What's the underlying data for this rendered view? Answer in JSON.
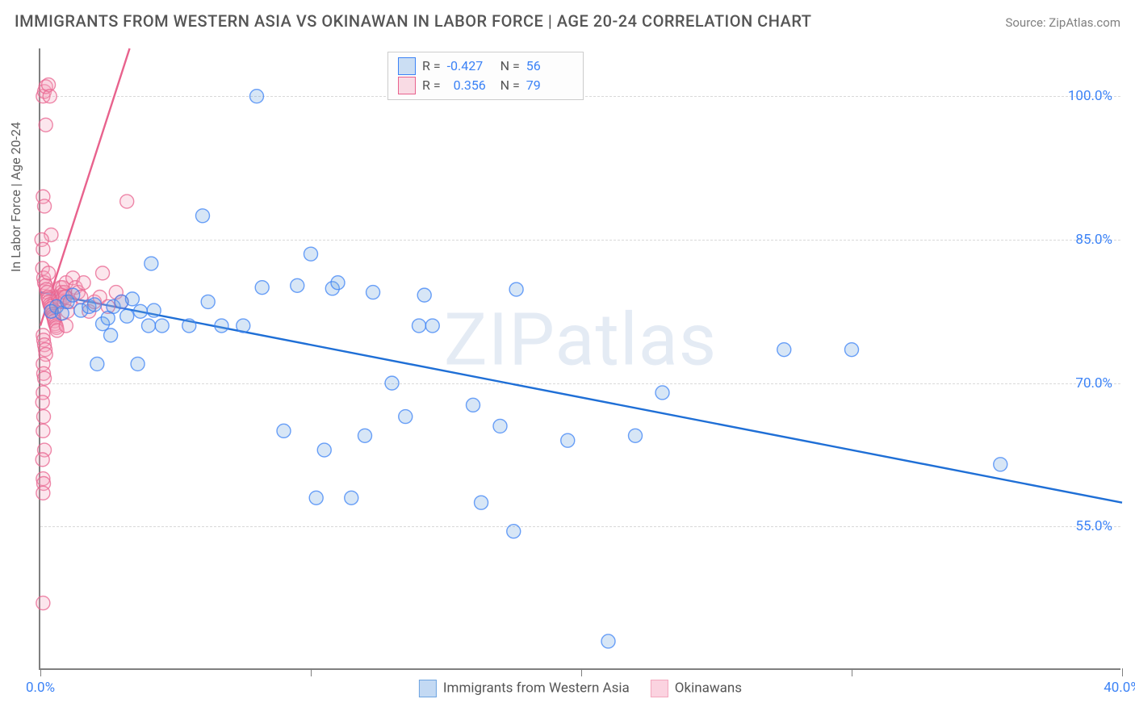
{
  "title": "IMMIGRANTS FROM WESTERN ASIA VS OKINAWAN IN LABOR FORCE | AGE 20-24 CORRELATION CHART",
  "source": "Source: ZipAtlas.com",
  "y_axis_title": "In Labor Force | Age 20-24",
  "watermark": "ZIPatlas",
  "chart": {
    "type": "scatter-correlation",
    "background_color": "#ffffff",
    "grid_color": "#d9d9d9",
    "axis_color": "#7f7f7f",
    "xlim": [
      0,
      40
    ],
    "ylim": [
      40,
      105
    ],
    "x_ticks": [
      0,
      10,
      20,
      30,
      40
    ],
    "x_tick_labels": [
      "0.0%",
      "",
      "",
      "",
      "40.0%"
    ],
    "y_ticks": [
      55,
      70,
      85,
      100
    ],
    "y_tick_labels": [
      "55.0%",
      "70.0%",
      "85.0%",
      "100.0%"
    ],
    "label_fontsize": 17,
    "label_color": "#3b82f6",
    "title_fontsize": 20,
    "title_color": "#555555",
    "marker_radius": 8.5,
    "marker_stroke_width": 1.4,
    "marker_fill_opacity": 0.28,
    "trend_line_width": 2.4,
    "series": [
      {
        "name": "Immigrants from Western Asia",
        "color": "#6ea4e0",
        "stroke": "#3b82f6",
        "line_color": "#1f6fd6",
        "R": "-0.427",
        "N": "56",
        "trend": {
          "x1": 0,
          "y1": 79.5,
          "x2": 40,
          "y2": 57.5
        },
        "points": [
          [
            0.4,
            77.5
          ],
          [
            0.6,
            78
          ],
          [
            0.8,
            77.3
          ],
          [
            1.0,
            78.5
          ],
          [
            1.2,
            79.2
          ],
          [
            1.5,
            77.6
          ],
          [
            1.8,
            78.0
          ],
          [
            2.0,
            78.2
          ],
          [
            2.1,
            72.0
          ],
          [
            2.3,
            76.2
          ],
          [
            2.5,
            76.8
          ],
          [
            2.6,
            75.0
          ],
          [
            2.7,
            78.0
          ],
          [
            3.0,
            78.5
          ],
          [
            3.2,
            77.0
          ],
          [
            3.4,
            78.8
          ],
          [
            3.6,
            72.0
          ],
          [
            3.7,
            77.5
          ],
          [
            4.0,
            76.0
          ],
          [
            4.1,
            82.5
          ],
          [
            4.2,
            77.6
          ],
          [
            4.5,
            76.0
          ],
          [
            5.5,
            76.0
          ],
          [
            6.0,
            87.5
          ],
          [
            6.2,
            78.5
          ],
          [
            6.7,
            76.0
          ],
          [
            7.5,
            76.0
          ],
          [
            8.0,
            100.0
          ],
          [
            8.2,
            80.0
          ],
          [
            9.0,
            65.0
          ],
          [
            9.5,
            80.2
          ],
          [
            10.0,
            83.5
          ],
          [
            10.2,
            58.0
          ],
          [
            10.5,
            63.0
          ],
          [
            10.8,
            79.9
          ],
          [
            11.0,
            80.5
          ],
          [
            11.5,
            58.0
          ],
          [
            12.0,
            64.5
          ],
          [
            12.3,
            79.5
          ],
          [
            13.0,
            70.0
          ],
          [
            13.5,
            66.5
          ],
          [
            14.0,
            76.0
          ],
          [
            14.2,
            79.2
          ],
          [
            14.5,
            76.0
          ],
          [
            16.0,
            67.7
          ],
          [
            16.3,
            57.5
          ],
          [
            17.0,
            65.5
          ],
          [
            17.5,
            54.5
          ],
          [
            17.6,
            79.8
          ],
          [
            19.5,
            64.0
          ],
          [
            21.0,
            43.0
          ],
          [
            23.0,
            69.0
          ],
          [
            27.5,
            73.5
          ],
          [
            30.0,
            73.5
          ],
          [
            35.5,
            61.5
          ],
          [
            22.0,
            64.5
          ]
        ]
      },
      {
        "name": "Okinawans",
        "color": "#f3a7bd",
        "stroke": "#e8628d",
        "line_color": "#e8628d",
        "R": "0.356",
        "N": "79",
        "trend": {
          "x1": 0,
          "y1": 76.0,
          "x2": 3.3,
          "y2": 105.0
        },
        "points": [
          [
            0.1,
            100.0
          ],
          [
            0.15,
            100.5
          ],
          [
            0.2,
            101.0
          ],
          [
            0.3,
            101.2
          ],
          [
            0.35,
            100.0
          ],
          [
            0.2,
            97.0
          ],
          [
            0.1,
            89.5
          ],
          [
            0.15,
            88.5
          ],
          [
            0.4,
            85.5
          ],
          [
            0.05,
            85.0
          ],
          [
            0.1,
            84.0
          ],
          [
            0.08,
            82.0
          ],
          [
            0.12,
            81.0
          ],
          [
            0.15,
            80.5
          ],
          [
            0.2,
            80.2
          ],
          [
            0.22,
            79.8
          ],
          [
            0.25,
            79.5
          ],
          [
            0.28,
            79.0
          ],
          [
            0.3,
            78.8
          ],
          [
            0.32,
            78.5
          ],
          [
            0.35,
            78.2
          ],
          [
            0.38,
            78.0
          ],
          [
            0.4,
            77.8
          ],
          [
            0.42,
            77.5
          ],
          [
            0.45,
            77.2
          ],
          [
            0.48,
            77.0
          ],
          [
            0.5,
            76.8
          ],
          [
            0.52,
            76.5
          ],
          [
            0.55,
            76.2
          ],
          [
            0.58,
            76.0
          ],
          [
            0.6,
            75.8
          ],
          [
            0.62,
            75.5
          ],
          [
            0.65,
            79.0
          ],
          [
            0.7,
            78.8
          ],
          [
            0.72,
            78.5
          ],
          [
            0.75,
            80.0
          ],
          [
            0.78,
            79.5
          ],
          [
            0.8,
            79.2
          ],
          [
            0.82,
            80.0
          ],
          [
            0.85,
            79.0
          ],
          [
            0.88,
            78.5
          ],
          [
            0.9,
            79.5
          ],
          [
            0.92,
            79.0
          ],
          [
            0.95,
            80.5
          ],
          [
            0.1,
            75.0
          ],
          [
            0.12,
            74.5
          ],
          [
            0.15,
            74.0
          ],
          [
            0.18,
            73.5
          ],
          [
            0.2,
            73.0
          ],
          [
            0.1,
            72.0
          ],
          [
            0.12,
            71.0
          ],
          [
            0.15,
            70.5
          ],
          [
            0.1,
            69.0
          ],
          [
            0.08,
            68.0
          ],
          [
            0.12,
            66.5
          ],
          [
            0.1,
            65.0
          ],
          [
            0.15,
            63.0
          ],
          [
            0.08,
            62.0
          ],
          [
            0.1,
            60.0
          ],
          [
            0.12,
            59.5
          ],
          [
            0.1,
            58.5
          ],
          [
            0.1,
            47.0
          ],
          [
            1.2,
            81.0
          ],
          [
            1.3,
            80.0
          ],
          [
            1.4,
            79.5
          ],
          [
            1.5,
            79.0
          ],
          [
            1.6,
            80.5
          ],
          [
            1.8,
            77.5
          ],
          [
            2.0,
            78.5
          ],
          [
            2.2,
            79.0
          ],
          [
            2.3,
            81.5
          ],
          [
            2.5,
            78.0
          ],
          [
            2.8,
            79.5
          ],
          [
            3.0,
            78.5
          ],
          [
            3.2,
            89.0
          ],
          [
            1.1,
            78.5
          ],
          [
            1.0,
            77.5
          ],
          [
            0.95,
            76.0
          ],
          [
            0.3,
            81.5
          ]
        ]
      }
    ]
  },
  "bottom_legend": [
    {
      "label": "Immigrants from Western Asia",
      "fill": "#c3d9f3",
      "stroke": "#6ea4e0"
    },
    {
      "label": "Okinawans",
      "fill": "#fbd3e0",
      "stroke": "#f3a7bd"
    }
  ]
}
